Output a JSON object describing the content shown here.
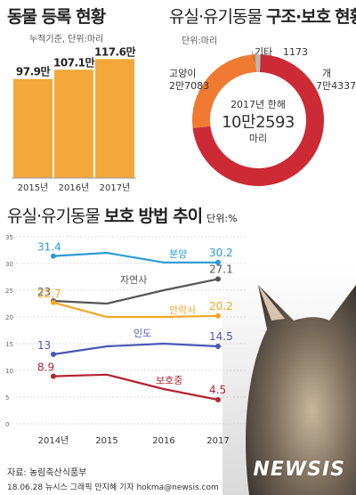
{
  "bar_section": {
    "title": "동물 등록 현황",
    "subtitle": "누적기준, 단위:마리"
  },
  "donut_section": {
    "title_light": "유실·유기동물",
    "title_bold": "구조·보호",
    "title_end": "현황",
    "unit": "단위:마리",
    "center_top": "2017년 한해",
    "center_value": "10만2593",
    "center_unit": "마리"
  },
  "line_section": {
    "title_light": "유실·유기동물",
    "title_bold": "보호 방법 추이",
    "unit": "단위:%"
  },
  "footer": {
    "source": "자료: 농림축산식품부",
    "credit": "18.06.28 뉴시스 그래픽 안지혜 기자  hokma@newsis.com",
    "logo": "NEWSIS"
  },
  "colors": {
    "bar": "#f4a73b",
    "donut_main": "#cc2a35",
    "donut_cat": "#f07a32",
    "donut_other": "#b8b8b8",
    "line_adopt": "#2b9ad6",
    "line_natural": "#555555",
    "line_euthanasia": "#f5a623",
    "line_return": "#4a56b8",
    "line_protect": "#b22430"
  },
  "chart_data": [
    {
      "type": "bar",
      "title": "동물 등록 현황",
      "subtitle": "누적기준, 단위:마리",
      "categories": [
        "2015년",
        "2016년",
        "2017년"
      ],
      "values": [
        97.9,
        107.1,
        117.6
      ],
      "value_labels": [
        "97.9만",
        "107.1만",
        "117.6만"
      ],
      "ylim": [
        0,
        150
      ]
    },
    {
      "type": "pie",
      "title": "유실·유기동물 구조·보호 현황",
      "unit": "단위:마리",
      "labels": [
        "개",
        "고양이",
        "기타"
      ],
      "values": [
        74337,
        27083,
        1173
      ],
      "value_labels": [
        "7만4337",
        "2만7083",
        "1173"
      ],
      "total_label": "2017년 한해 10만2593 마리"
    },
    {
      "type": "line",
      "title": "유실·유기동물 보호 방법 추이",
      "unit": "단위:%",
      "x": [
        "2014년",
        "2015",
        "2016",
        "2017"
      ],
      "ylim": [
        0,
        35
      ],
      "yticks": [
        "0",
        "5",
        "10",
        "15",
        "20",
        "25",
        "30",
        "35"
      ],
      "series": [
        {
          "name": "분양",
          "values": [
            31.4,
            32,
            30.2,
            30.2
          ],
          "start_label": "31.4",
          "end_label": "30.2"
        },
        {
          "name": "자연사",
          "values": [
            23,
            22.5,
            25,
            27.1
          ],
          "start_label": "23",
          "end_label": "27.1"
        },
        {
          "name": "안락사",
          "values": [
            22.7,
            20,
            20,
            20.2
          ],
          "start_label": "22.7",
          "end_label": "20.2"
        },
        {
          "name": "인도",
          "values": [
            13,
            14.5,
            15,
            14.5
          ],
          "start_label": "13",
          "end_label": "14.5"
        },
        {
          "name": "보호중",
          "values": [
            8.9,
            9.2,
            6.5,
            4.5
          ],
          "start_label": "8.9",
          "end_label": "4.5"
        }
      ]
    }
  ]
}
